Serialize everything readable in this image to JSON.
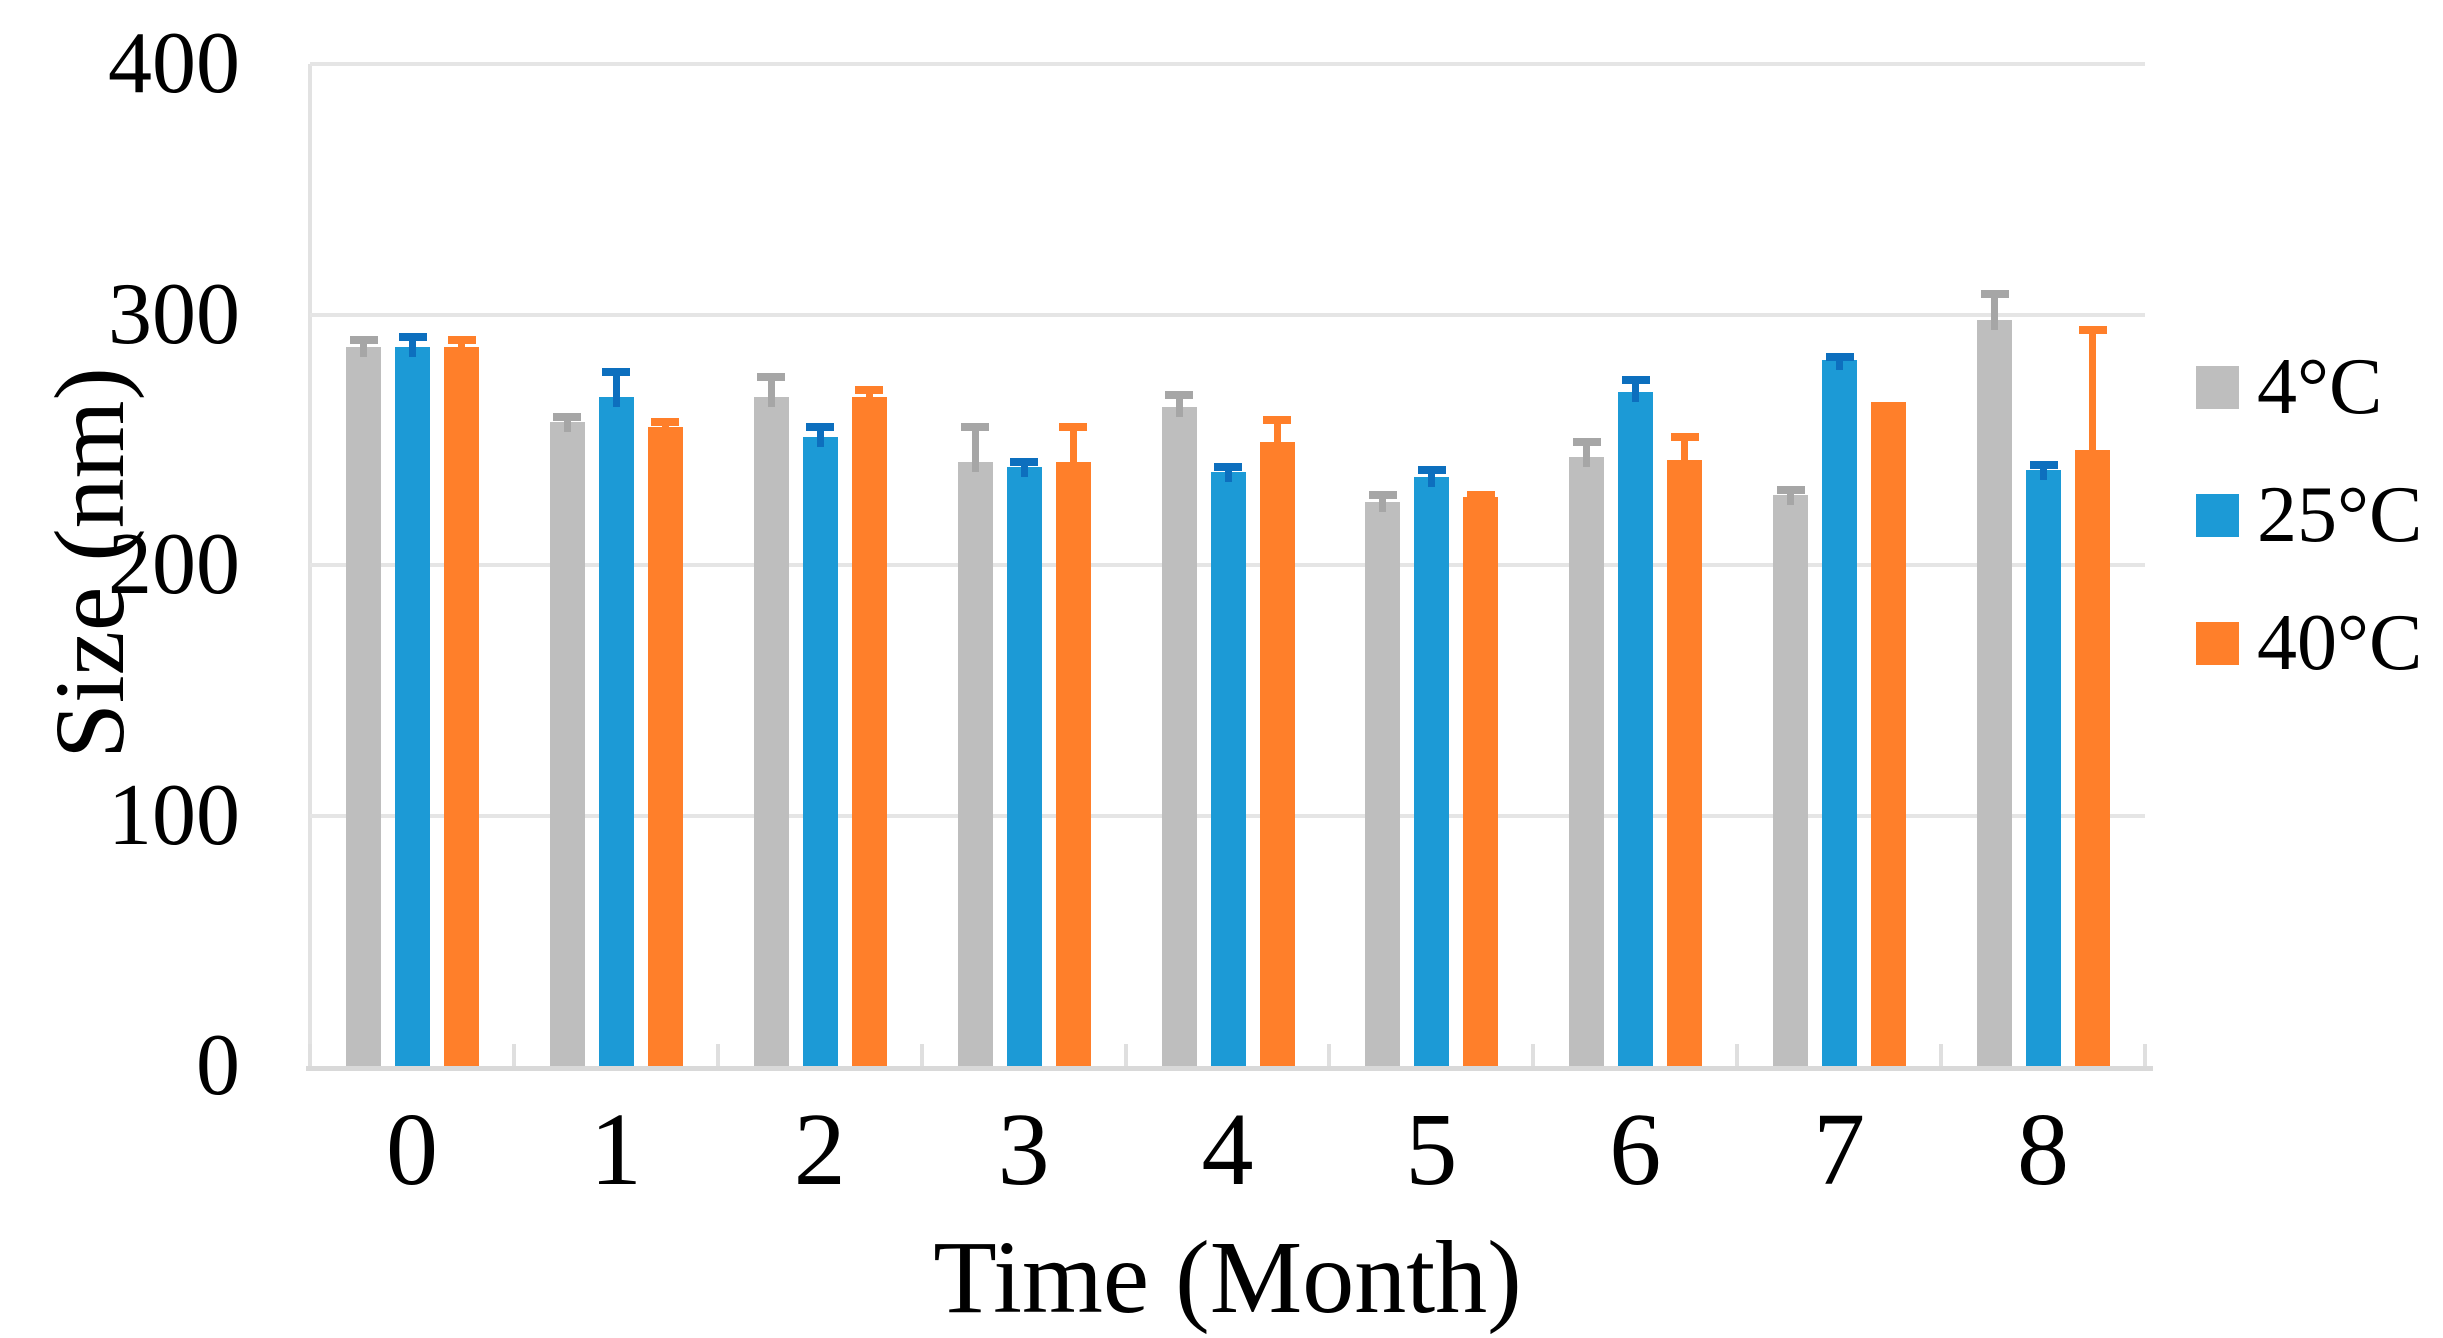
{
  "colors": {
    "background": "#FFFFFF",
    "gridline": "#E5E5E5",
    "axis": "#D9D9D9",
    "text": "#000000"
  },
  "chart_data": {
    "type": "bar",
    "title": "",
    "xlabel": "Time (Month)",
    "ylabel": "Size (nm)",
    "categories": [
      "0",
      "1",
      "2",
      "3",
      "4",
      "5",
      "6",
      "7",
      "8"
    ],
    "y_tick_labels": [
      "0",
      "100",
      "200",
      "300",
      "400"
    ],
    "y_ticks": [
      0,
      100,
      200,
      300,
      400
    ],
    "ylim": [
      0,
      400
    ],
    "grid": true,
    "legend_position": "right",
    "error_bars": "plus_direction_only",
    "series": [
      {
        "name": "4°C",
        "color": "#BEBEBE",
        "error_color": "#A6A6A6",
        "values": [
          287,
          257,
          267,
          241,
          263,
          225,
          243,
          228,
          298
        ],
        "error_plus": [
          3,
          2,
          8,
          14,
          5,
          3,
          6,
          2,
          10
        ]
      },
      {
        "name": "25°C",
        "color": "#1C9AD6",
        "error_color": "#0D6FBE",
        "values": [
          287,
          267,
          251,
          239,
          237,
          235,
          269,
          282,
          238
        ],
        "error_plus": [
          4,
          10,
          4,
          2,
          2,
          3,
          5,
          1,
          2
        ]
      },
      {
        "name": "40°C",
        "color": "#FF7F2A",
        "error_color": "#FF7F2A",
        "values": [
          287,
          255,
          267,
          241,
          249,
          227,
          242,
          265,
          246
        ],
        "error_plus": [
          3,
          2,
          3,
          14,
          9,
          1,
          9,
          0,
          48
        ]
      }
    ]
  }
}
